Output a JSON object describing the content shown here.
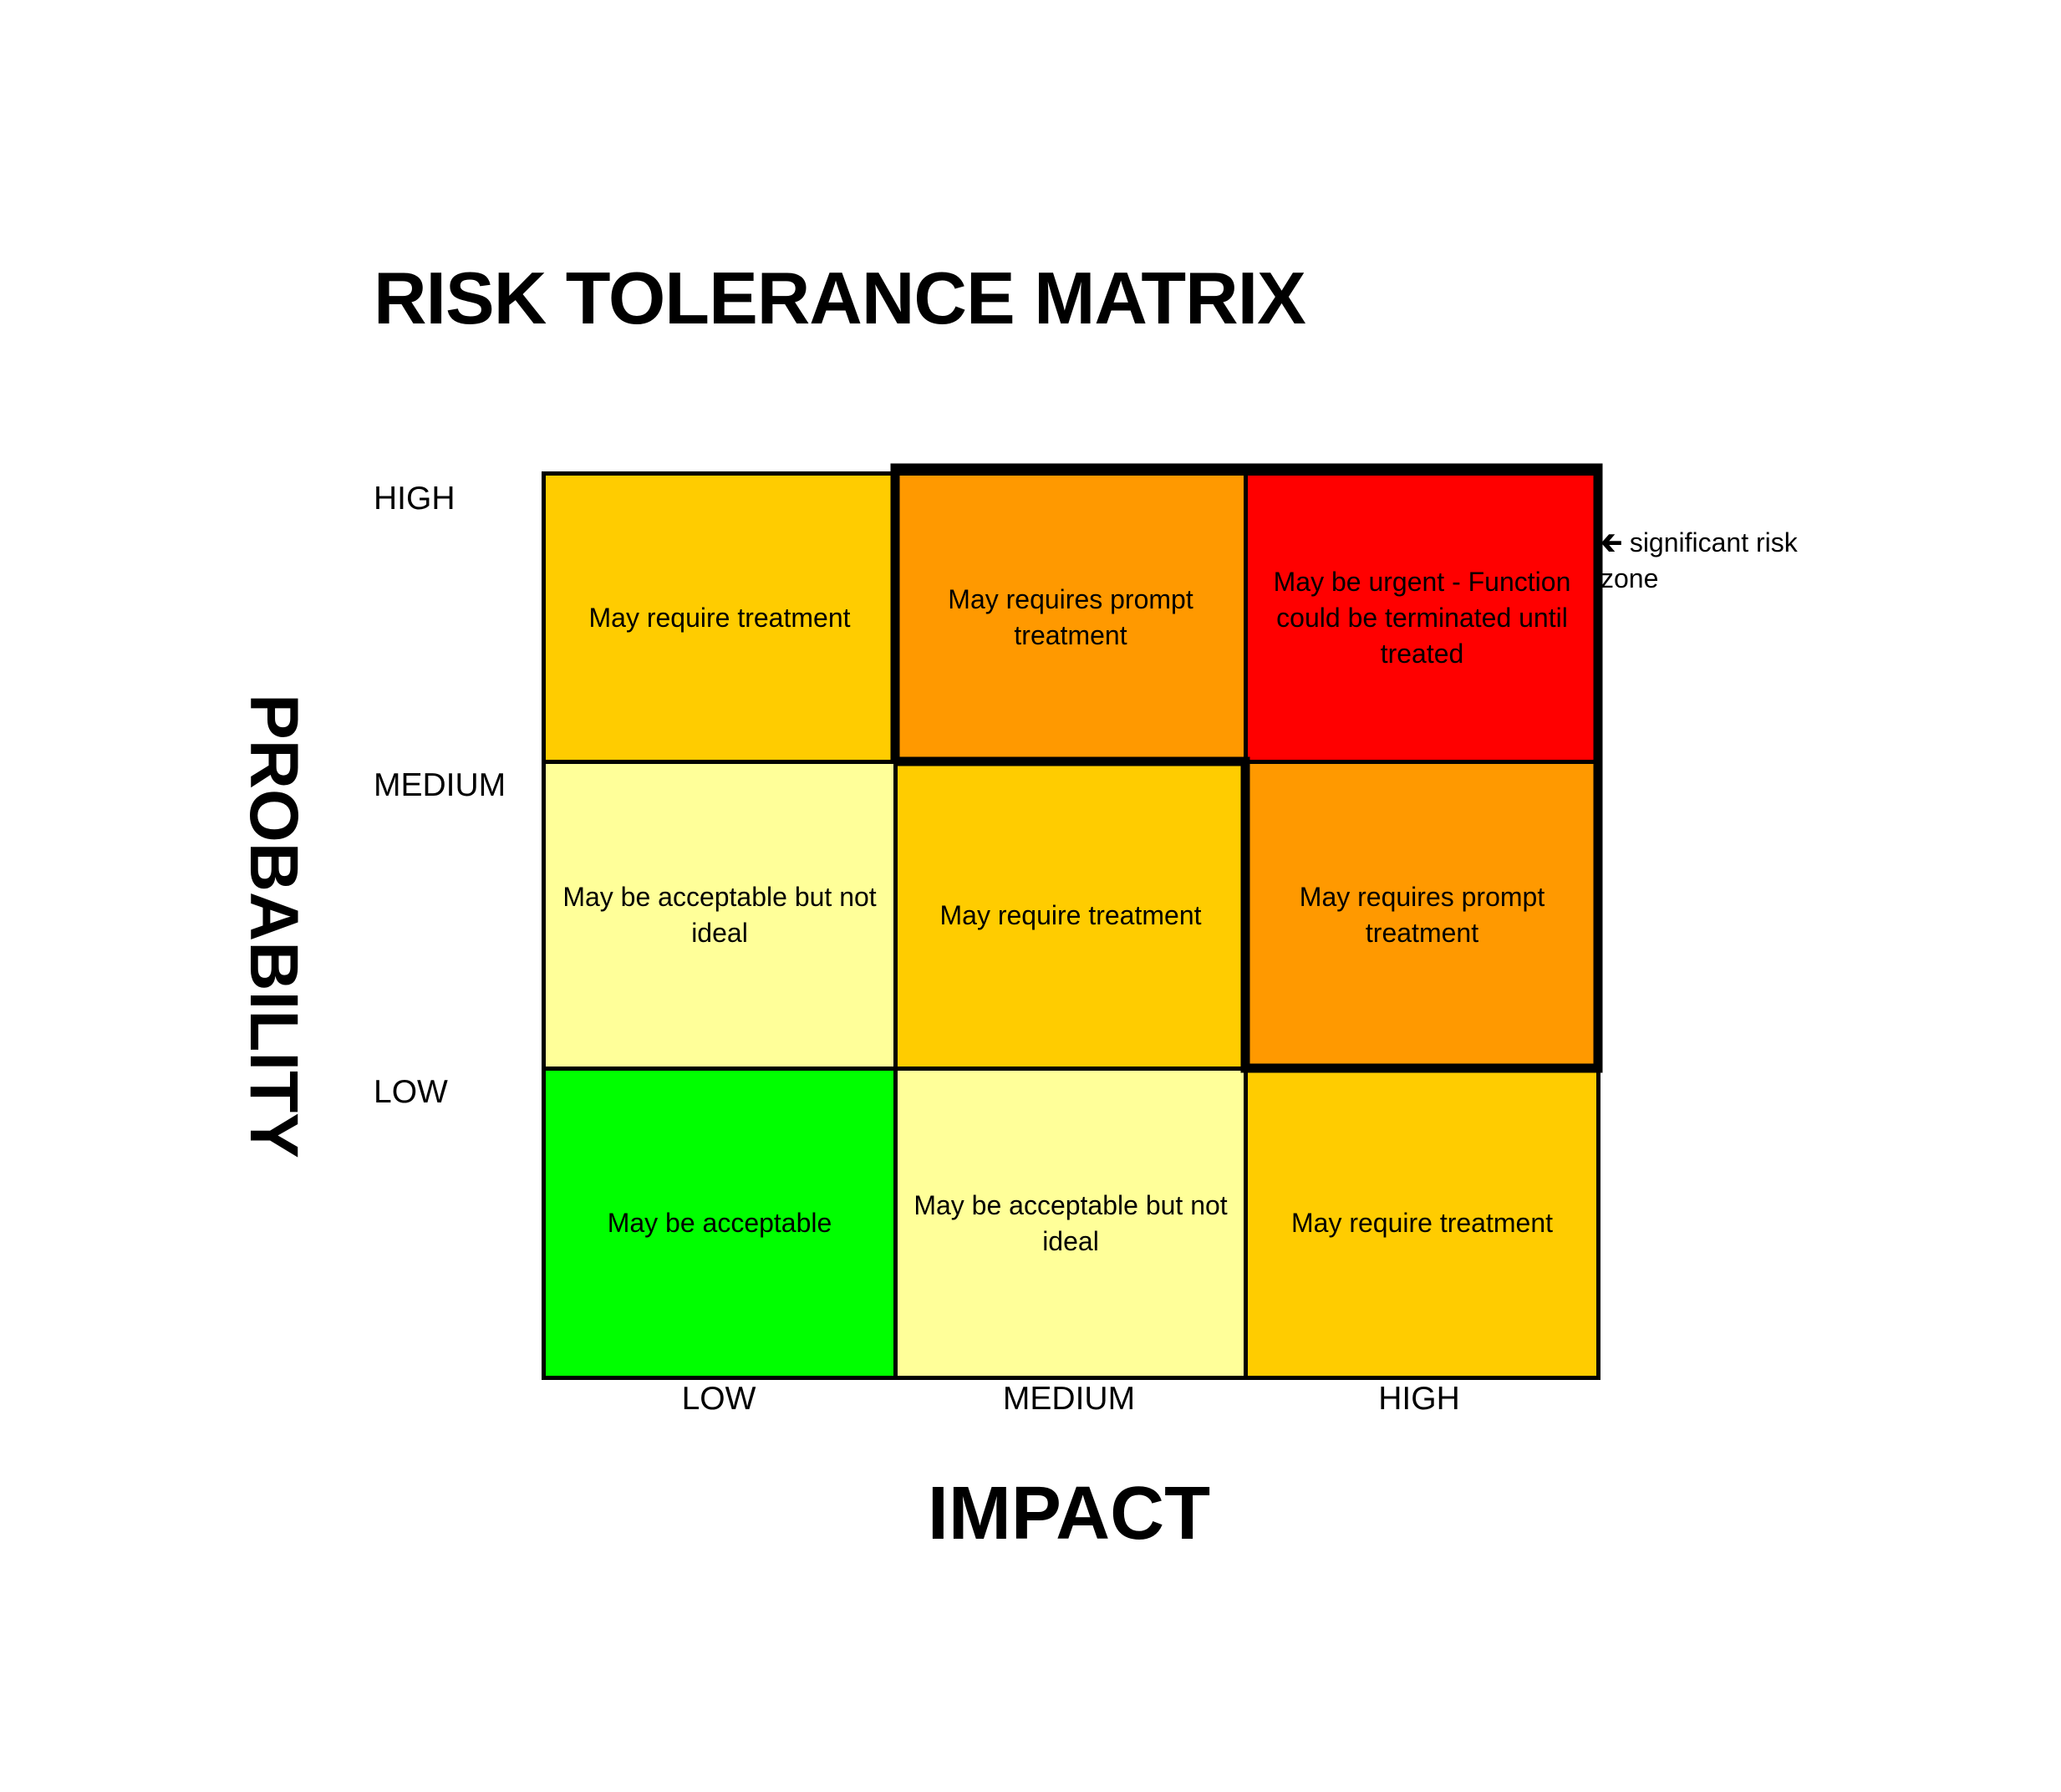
{
  "title": "RISK TOLERANCE MATRIX",
  "y_axis": {
    "label": "PROBABILITY",
    "levels": [
      "HIGH",
      "MEDIUM",
      "LOW"
    ]
  },
  "x_axis": {
    "label": "IMPACT",
    "levels": [
      "LOW",
      "MEDIUM",
      "HIGH"
    ]
  },
  "cells": [
    [
      {
        "text": "May require treatment",
        "color": "#FFCC00"
      },
      {
        "text": "May requires prompt treatment",
        "color": "#FF9900"
      },
      {
        "text": "May be urgent - Function could be terminated until treated",
        "color": "#FF0000"
      }
    ],
    [
      {
        "text": "May be acceptable but not ideal",
        "color": "#FFFF99"
      },
      {
        "text": "May require treatment",
        "color": "#FFCC00"
      },
      {
        "text": "May requires prompt treatment",
        "color": "#FF9900"
      }
    ],
    [
      {
        "text": "May be acceptable",
        "color": "#00FF00"
      },
      {
        "text": "May be acceptable but not ideal",
        "color": "#FFFF99"
      },
      {
        "text": "May require treatment",
        "color": "#FFCC00"
      }
    ]
  ],
  "annotation": {
    "icon": "arrow-left-icon",
    "arrow": "🡰",
    "text": "significant risk",
    "text2": "zone"
  }
}
